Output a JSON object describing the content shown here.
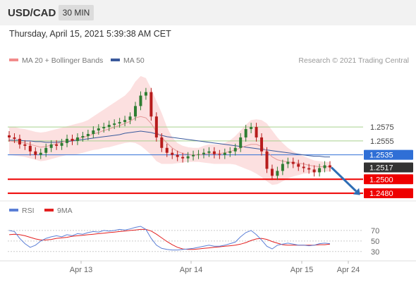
{
  "header": {
    "symbol": "USD/CAD",
    "timeframe": "30 MIN"
  },
  "timestamp": "Thursday, April 15, 2021 5:39:38 AM CET",
  "credit": "Research © 2021 Trading Central",
  "colors": {
    "bollinger_fill": "#fbd6d6",
    "ma20": "#e59a9a",
    "ma50": "#3a5a9c",
    "bull": "#2e7d32",
    "bear": "#b71c1c",
    "green_line": "#a9d18e",
    "blue_line": "#2f6fd6",
    "red_line": "#ee0000",
    "current": "#333333",
    "arrow": "#2e6eb5",
    "rsi": "#5b7fd6",
    "rsi_ma": "#e32020"
  },
  "chart_data": [
    {
      "type": "line",
      "title": "USD/CAD 30 MIN",
      "legend": [
        "MA 20 + Bollinger Bands",
        "MA 50"
      ],
      "x_ticks": [
        "Apr 13",
        "Apr 14",
        "Apr 15",
        "Apr 24"
      ],
      "ylim": [
        1.2472,
        1.266
      ],
      "levels": [
        {
          "label": "1.2575",
          "value": 1.2575,
          "style": "green"
        },
        {
          "label": "1.2555",
          "value": 1.2555,
          "style": "green"
        },
        {
          "label": "1.2535",
          "value": 1.2535,
          "style": "blue"
        },
        {
          "label": "1.2517",
          "value": 1.2517,
          "style": "current"
        },
        {
          "label": "1.2500",
          "value": 1.25,
          "style": "red"
        },
        {
          "label": "1.2480",
          "value": 1.248,
          "style": "red"
        }
      ],
      "series": [
        {
          "name": "Price",
          "values": [
            1.256,
            1.2558,
            1.255,
            1.2548,
            1.254,
            1.2535,
            1.2538,
            1.2545,
            1.255,
            1.2548,
            1.2552,
            1.2558,
            1.2555,
            1.256,
            1.2562,
            1.2565,
            1.257,
            1.2573,
            1.2575,
            1.2578,
            1.258,
            1.2582,
            1.2585,
            1.259,
            1.2605,
            1.262,
            1.2625,
            1.259,
            1.256,
            1.2545,
            1.2538,
            1.2535,
            1.2532,
            1.253,
            1.2533,
            1.2535,
            1.2536,
            1.2538,
            1.254,
            1.2536,
            1.2535,
            1.2538,
            1.254,
            1.2545,
            1.256,
            1.2572,
            1.2575,
            1.256,
            1.254,
            1.2515,
            1.2505,
            1.2512,
            1.2522,
            1.2525,
            1.2522,
            1.2518,
            1.2516,
            1.2514,
            1.251,
            1.2516,
            1.252,
            1.2517
          ]
        },
        {
          "name": "MA 20",
          "values": [
            1.2555,
            1.2554,
            1.2553,
            1.2552,
            1.255,
            1.2548,
            1.2546,
            1.2547,
            1.2549,
            1.2551,
            1.2553,
            1.2555,
            1.2556,
            1.2558,
            1.256,
            1.2562,
            1.2565,
            1.2567,
            1.257,
            1.2572,
            1.2575,
            1.2577,
            1.258,
            1.2583,
            1.2588,
            1.259,
            1.2588,
            1.258,
            1.2568,
            1.256,
            1.2552,
            1.2545,
            1.254,
            1.2537,
            1.2536,
            1.2535,
            1.2535,
            1.2536,
            1.2537,
            1.2537,
            1.2537,
            1.2538,
            1.254,
            1.2542,
            1.2545,
            1.2548,
            1.255,
            1.255,
            1.2547,
            1.254,
            1.2532,
            1.2528,
            1.2526,
            1.2525,
            1.2524,
            1.2523,
            1.2522,
            1.252,
            1.2519,
            1.2518,
            1.2518,
            1.2518
          ]
        },
        {
          "name": "MA 50",
          "values": [
            1.2556,
            1.2556,
            1.2556,
            1.2555,
            1.2555,
            1.2554,
            1.2554,
            1.2553,
            1.2553,
            1.2553,
            1.2554,
            1.2554,
            1.2555,
            1.2556,
            1.2557,
            1.2558,
            1.2559,
            1.256,
            1.2561,
            1.2562,
            1.2563,
            1.2564,
            1.2566,
            1.2567,
            1.2568,
            1.2569,
            1.2568,
            1.2567,
            1.2565,
            1.2563,
            1.2561,
            1.256,
            1.2559,
            1.2558,
            1.2557,
            1.2556,
            1.2555,
            1.2554,
            1.2553,
            1.2552,
            1.2551,
            1.255,
            1.2549,
            1.2548,
            1.2547,
            1.2546,
            1.2545,
            1.2544,
            1.2543,
            1.2542,
            1.2541,
            1.254,
            1.2539,
            1.2538,
            1.2537,
            1.2536,
            1.2535,
            1.2534,
            1.2533,
            1.2533,
            1.2532,
            1.2532
          ]
        }
      ],
      "bollinger": {
        "upper": [
          1.2575,
          1.2575,
          1.2573,
          1.2572,
          1.257,
          1.2568,
          1.2567,
          1.2568,
          1.257,
          1.2572,
          1.2574,
          1.2576,
          1.2578,
          1.258,
          1.2582,
          1.2585,
          1.259,
          1.2595,
          1.26,
          1.2605,
          1.261,
          1.2615,
          1.262,
          1.2628,
          1.264,
          1.2648,
          1.2645,
          1.263,
          1.2612,
          1.2595,
          1.2575,
          1.256,
          1.2552,
          1.2548,
          1.2546,
          1.2545,
          1.2545,
          1.2548,
          1.255,
          1.255,
          1.255,
          1.2552,
          1.2556,
          1.2562,
          1.257,
          1.2578,
          1.2585,
          1.2586,
          1.2585,
          1.258,
          1.257,
          1.256,
          1.2552,
          1.2545,
          1.254,
          1.2536,
          1.2533,
          1.253,
          1.2527,
          1.2526,
          1.2525,
          1.2525
        ],
        "lower": [
          1.2535,
          1.2534,
          1.2533,
          1.2532,
          1.253,
          1.2528,
          1.2526,
          1.2527,
          1.2529,
          1.2531,
          1.2533,
          1.2535,
          1.2535,
          1.2536,
          1.2538,
          1.254,
          1.2542,
          1.2543,
          1.2545,
          1.2546,
          1.2548,
          1.255,
          1.2552,
          1.2553,
          1.2552,
          1.2548,
          1.2542,
          1.2535,
          1.2526,
          1.2522,
          1.2522,
          1.2522,
          1.2523,
          1.2524,
          1.2525,
          1.2525,
          1.2525,
          1.2524,
          1.2523,
          1.2522,
          1.2522,
          1.2522,
          1.2522,
          1.2521,
          1.2518,
          1.2515,
          1.2512,
          1.2508,
          1.2503,
          1.2497,
          1.2492,
          1.2493,
          1.2497,
          1.2501,
          1.2504,
          1.2506,
          1.2508,
          1.2509,
          1.251,
          1.251,
          1.2511,
          1.2511
        ]
      },
      "forecast_arrow": {
        "from": 1.2517,
        "to": 1.2483
      }
    },
    {
      "type": "line",
      "title": "RSI",
      "legend": [
        "RSI",
        "9MA"
      ],
      "y_ticks": [
        "70",
        "50",
        "30"
      ],
      "ylim": [
        15,
        90
      ],
      "series": [
        {
          "name": "RSI",
          "values": [
            70,
            68,
            55,
            45,
            38,
            42,
            50,
            55,
            58,
            60,
            58,
            62,
            60,
            64,
            63,
            66,
            68,
            67,
            70,
            69,
            70,
            72,
            71,
            73,
            76,
            78,
            72,
            55,
            42,
            36,
            34,
            33,
            33,
            34,
            35,
            36,
            38,
            40,
            42,
            40,
            40,
            42,
            45,
            48,
            58,
            66,
            70,
            62,
            52,
            40,
            35,
            42,
            44,
            46,
            44,
            42,
            42,
            41,
            42,
            45,
            46,
            45
          ]
        },
        {
          "name": "9MA",
          "values": [
            62,
            63,
            62,
            60,
            57,
            54,
            52,
            52,
            53,
            55,
            56,
            57,
            59,
            60,
            61,
            62,
            63,
            64,
            65,
            66,
            67,
            68,
            69,
            70,
            71,
            72,
            72,
            69,
            63,
            56,
            49,
            43,
            38,
            35,
            34,
            34,
            35,
            36,
            37,
            38,
            39,
            40,
            41,
            42,
            44,
            47,
            51,
            54,
            55,
            53,
            49,
            46,
            43,
            42,
            42,
            42,
            42,
            42,
            42,
            43,
            43,
            44
          ]
        }
      ]
    }
  ]
}
